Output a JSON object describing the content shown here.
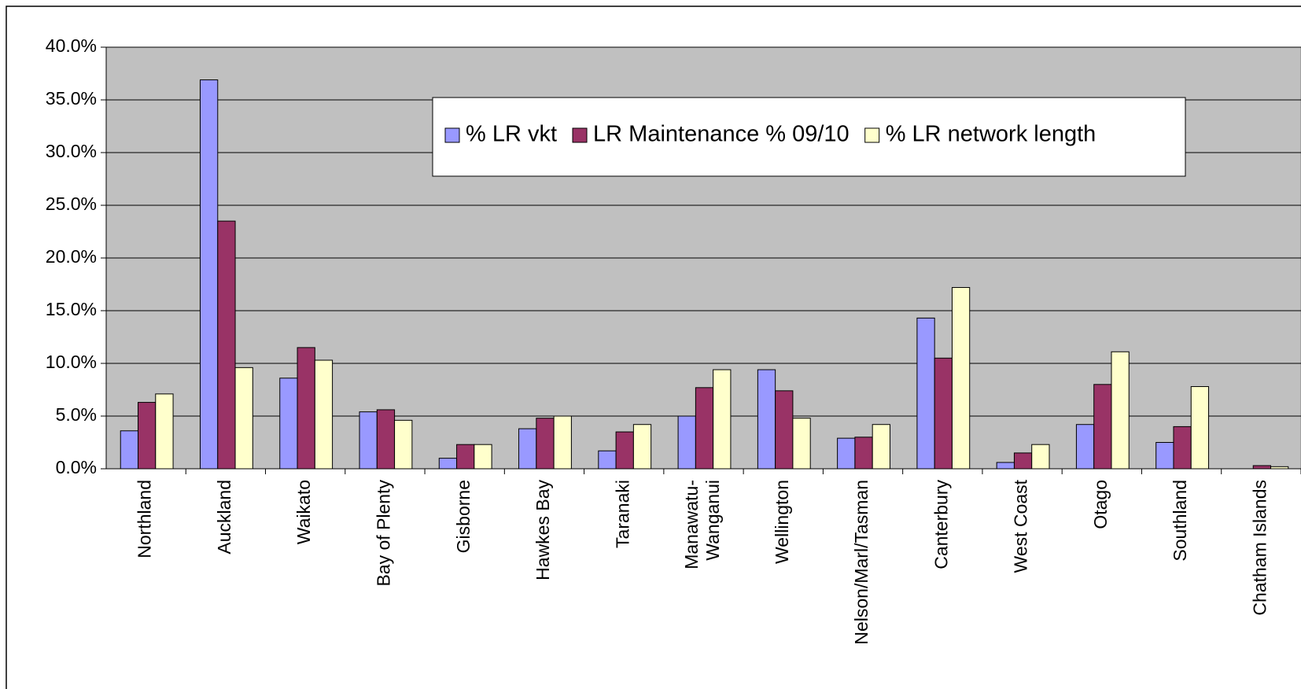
{
  "chart_data": {
    "type": "bar",
    "categories": [
      "Northland",
      "Auckland",
      "Waikato",
      "Bay of Plenty",
      "Gisborne",
      "Hawkes Bay",
      "Taranaki",
      "Manawatu-\nWanganui",
      "Wellington",
      "Nelson/Marl/Tasman",
      "Canterbury",
      "West Coast",
      "Otago",
      "Southland",
      "Chatham Islands"
    ],
    "series": [
      {
        "name": "% LR vkt",
        "color": "#9999ff",
        "values": [
          3.6,
          36.9,
          8.6,
          5.4,
          1.0,
          3.8,
          1.7,
          5.0,
          9.4,
          2.9,
          14.3,
          0.6,
          4.2,
          2.5,
          0
        ]
      },
      {
        "name": "LR Maintenance % 09/10",
        "color": "#993366",
        "values": [
          6.3,
          23.5,
          11.5,
          5.6,
          2.3,
          4.8,
          3.5,
          7.7,
          7.4,
          3.0,
          10.5,
          1.5,
          8.0,
          4.0,
          0.3
        ]
      },
      {
        "name": "% LR network length",
        "color": "#ffffcc",
        "values": [
          7.1,
          9.6,
          10.3,
          4.6,
          2.3,
          5.0,
          4.2,
          9.4,
          4.8,
          4.2,
          17.2,
          2.3,
          11.1,
          7.8,
          0.2
        ]
      }
    ],
    "ylim": [
      0,
      40
    ],
    "yticks": [
      {
        "value": 0,
        "label": "0.0%"
      },
      {
        "value": 5,
        "label": "5.0%"
      },
      {
        "value": 10,
        "label": "10.0%"
      },
      {
        "value": 15,
        "label": "15.0%"
      },
      {
        "value": 20,
        "label": "20.0%"
      },
      {
        "value": 25,
        "label": "25.0%"
      },
      {
        "value": 30,
        "label": "30.0%"
      },
      {
        "value": 35,
        "label": "35.0%"
      },
      {
        "value": 40,
        "label": "40.0%"
      }
    ],
    "grid": true,
    "legend": "upper-center",
    "plot_background": "#c0c0c0"
  }
}
